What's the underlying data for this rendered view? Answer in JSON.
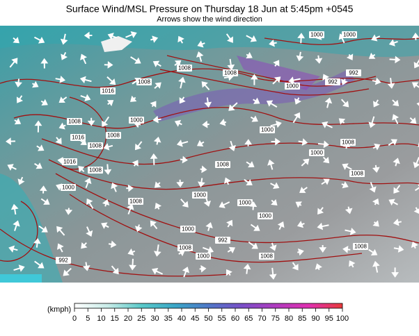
{
  "header": {
    "title": "Surface Wind/MSL Pressure on Thursday 18 Jun at 5:45pm +0545",
    "subtitle": "Arrows show the wind direction"
  },
  "map": {
    "isobar_labels": [
      "1000",
      "1000",
      "992",
      "1008",
      "1008",
      "1016",
      "1008",
      "992",
      "1000",
      "1000",
      "1008",
      "1016",
      "1008",
      "1008",
      "1000",
      "1008",
      "1000",
      "1016",
      "1008",
      "1008",
      "1000",
      "1008",
      "1000",
      "1000",
      "1000",
      "1008",
      "1000",
      "992",
      "1008",
      "1000",
      "1008",
      "1008",
      "992"
    ]
  },
  "legend": {
    "unit": "(kmph)",
    "lim": [
      0,
      100
    ],
    "ticks": [
      0,
      5,
      10,
      15,
      20,
      25,
      30,
      35,
      40,
      45,
      50,
      55,
      60,
      65,
      70,
      75,
      80,
      85,
      90,
      95,
      100
    ],
    "colors": [
      "#ffffff",
      "#c8ece8",
      "#59c9c9",
      "#3aa7c8",
      "#4f78c8",
      "#7a4fc8",
      "#b03cc0",
      "#e030b0",
      "#e83a3a"
    ]
  }
}
